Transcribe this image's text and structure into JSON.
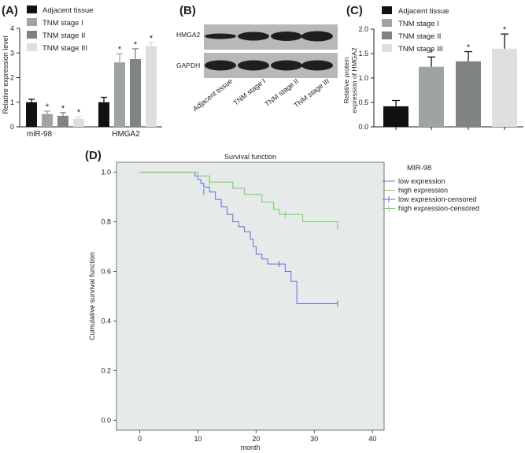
{
  "colors": {
    "adjacent": "#111111",
    "stage1": "#9fa3a4",
    "stage2": "#7f8483",
    "stage3": "#dcdfdd",
    "km_bg": "#e6ebea",
    "low": "#5a6cd8",
    "high": "#6ed15c",
    "blot_bg": "#b8b8b8",
    "blot_band": "#1e1e1e"
  },
  "chart_data": [
    {
      "panel": "(A)",
      "type": "bar",
      "ylabel": "Relative expression level",
      "ylim": [
        0,
        4
      ],
      "yticks": [
        "0",
        "1",
        "2",
        "3",
        "4"
      ],
      "categories": [
        "miR-98",
        "HMGA2"
      ],
      "legend": [
        "Adjacent tissue",
        "TNM stage I",
        "TNM stage II",
        "TNM stage III"
      ],
      "series": [
        {
          "name": "Adjacent tissue",
          "values": [
            1.0,
            1.0
          ],
          "errors": [
            0.12,
            0.2
          ],
          "sig": [
            "",
            ""
          ]
        },
        {
          "name": "TNM stage I",
          "values": [
            0.52,
            2.62
          ],
          "errors": [
            0.12,
            0.35
          ],
          "sig": [
            "*",
            "*"
          ]
        },
        {
          "name": "TNM stage II",
          "values": [
            0.45,
            2.75
          ],
          "errors": [
            0.13,
            0.42
          ],
          "sig": [
            "*",
            "*"
          ]
        },
        {
          "name": "TNM stage III",
          "values": [
            0.33,
            3.28
          ],
          "errors": [
            0.08,
            0.15
          ],
          "sig": [
            "*",
            "*"
          ]
        }
      ]
    },
    {
      "panel": "(B)",
      "type": "western_blot",
      "rows": [
        "HMGA2",
        "GAPDH"
      ],
      "lanes": [
        "Adjacent tissue",
        "TNM stage I",
        "TNM stage II",
        "TNM stage III"
      ]
    },
    {
      "panel": "(C)",
      "type": "bar",
      "ylabel_lines": [
        "Relative protein",
        "expression of HMGA2"
      ],
      "ylim": [
        0,
        2.0
      ],
      "yticks": [
        "0.0",
        "0.5",
        "1.0",
        "1.5",
        "2.0"
      ],
      "legend": [
        "Adjacent tissue",
        "TNM stage I",
        "TNM stage II",
        "TNM stage III"
      ],
      "categories": [
        "Adjacent tissue",
        "TNM stage I",
        "TNM stage II",
        "TNM stage III"
      ],
      "values": [
        0.42,
        1.23,
        1.34,
        1.6
      ],
      "errors": [
        0.12,
        0.2,
        0.2,
        0.3
      ],
      "sig": [
        "",
        "*",
        "*",
        "*"
      ]
    },
    {
      "panel": "(D)",
      "type": "line",
      "title": "Survival function",
      "xlabel": "month",
      "ylabel": "Cumulative survival function",
      "xlim": [
        -4,
        42
      ],
      "ylim": [
        -0.04,
        1.04
      ],
      "xticks": [
        "0",
        "10",
        "20",
        "30",
        "40"
      ],
      "yticks": [
        "0.0",
        "0.2",
        "0.4",
        "0.6",
        "0.8",
        "1.0"
      ],
      "legend_title": "MIR-98",
      "legend": [
        "low expression",
        "high expression",
        "low expression-censored",
        "high expression-censored"
      ],
      "series": [
        {
          "name": "low expression",
          "step_x": [
            0,
            9.5,
            10,
            10.5,
            11,
            12,
            13,
            14,
            15,
            16,
            17,
            18,
            19,
            19.5,
            20,
            21,
            22,
            25,
            26,
            27,
            34
          ],
          "step_y": [
            1.0,
            0.985,
            0.97,
            0.955,
            0.94,
            0.92,
            0.89,
            0.86,
            0.83,
            0.8,
            0.78,
            0.76,
            0.73,
            0.7,
            0.67,
            0.65,
            0.63,
            0.6,
            0.56,
            0.47,
            0.47
          ],
          "censored": [
            [
              11,
              0.92
            ],
            [
              24,
              0.63
            ],
            [
              34,
              0.47
            ]
          ]
        },
        {
          "name": "high expression",
          "step_x": [
            0,
            10,
            12,
            16,
            18,
            21,
            23,
            24,
            28,
            34
          ],
          "step_y": [
            1.0,
            0.985,
            0.96,
            0.935,
            0.91,
            0.88,
            0.85,
            0.83,
            0.8,
            0.78
          ],
          "censored": [
            [
              12,
              0.96
            ],
            [
              25,
              0.83
            ],
            [
              34,
              0.78
            ]
          ]
        }
      ]
    }
  ]
}
